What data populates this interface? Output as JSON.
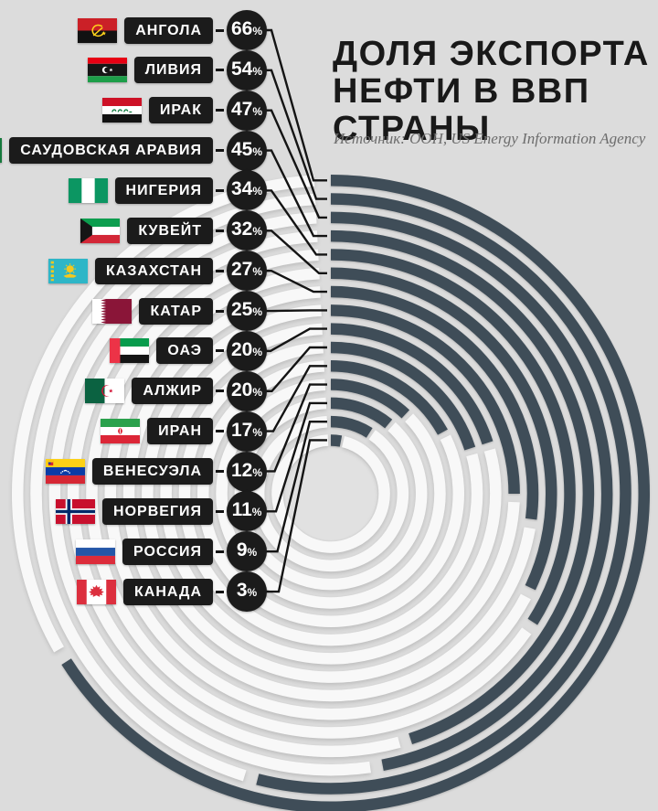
{
  "header": {
    "title_lines": [
      "ДОЛЯ ЭКСПОРТА",
      "НЕФТИ В ВВП",
      "СТРАНЫ"
    ],
    "source": "Источник: ООН, US Energy Information Agency"
  },
  "percent_symbol": "%",
  "colors": {
    "background": "#dcdcdc",
    "arc_filled": "#3f4d58",
    "arc_remainder": "#f8f8f8",
    "connector_line": "#141414",
    "label_box": "#1b1b1b",
    "badge": "#1b1b1b",
    "label_text": "#ffffff",
    "title_text": "#191919",
    "source_text": "#6d6d6d"
  },
  "countries": [
    {
      "name": "АНГОЛА",
      "value": 66,
      "flag": "angola-flag"
    },
    {
      "name": "ЛИВИЯ",
      "value": 54,
      "flag": "libya-flag"
    },
    {
      "name": "ИРАК",
      "value": 47,
      "flag": "iraq-flag"
    },
    {
      "name": "САУДОВСКАЯ АРАВИЯ",
      "value": 45,
      "flag": "saudi-arabia-flag"
    },
    {
      "name": "НИГЕРИЯ",
      "value": 34,
      "flag": "nigeria-flag"
    },
    {
      "name": "КУВЕЙТ",
      "value": 32,
      "flag": "kuwait-flag"
    },
    {
      "name": "КАЗАХСТАН",
      "value": 27,
      "flag": "kazakhstan-flag"
    },
    {
      "name": "КАТАР",
      "value": 25,
      "flag": "qatar-flag"
    },
    {
      "name": "ОАЭ",
      "value": 20,
      "flag": "uae-flag"
    },
    {
      "name": "АЛЖИР",
      "value": 20,
      "flag": "algeria-flag"
    },
    {
      "name": "ИРАН",
      "value": 17,
      "flag": "iran-flag"
    },
    {
      "name": "ВЕНЕСУЭЛА",
      "value": 12,
      "flag": "venezuela-flag"
    },
    {
      "name": "НОРВЕГИЯ",
      "value": 11,
      "flag": "norway-flag"
    },
    {
      "name": "РОССИЯ",
      "value": 9,
      "flag": "russia-flag"
    },
    {
      "name": "КАНАДА",
      "value": 3,
      "flag": "canada-flag"
    }
  ],
  "chart_data": {
    "type": "bar",
    "subtype": "radial-concentric-progress",
    "title": "ДОЛЯ ЭКСПОРТА НЕФТИ В ВВП СТРАНЫ",
    "source": "Источник: ООН, US Energy Information Agency",
    "unit": "%",
    "categories": [
      "АНГОЛА",
      "ЛИВИЯ",
      "ИРАК",
      "САУДОВСКАЯ АРАВИЯ",
      "НИГЕРИЯ",
      "КУВЕЙТ",
      "КАЗАХСТАН",
      "КАТАР",
      "ОАЭ",
      "АЛЖИР",
      "ИРАН",
      "ВЕНЕСУЭЛА",
      "НОРВЕГИЯ",
      "РОССИЯ",
      "КАНАДА"
    ],
    "values": [
      66,
      54,
      47,
      45,
      34,
      32,
      27,
      25,
      20,
      20,
      17,
      12,
      11,
      9,
      3
    ],
    "axis_range": [
      0,
      100
    ],
    "legend": "none",
    "layout_hints": {
      "ring_order": "outermost ring = highest value (АНГОЛА 66%), innermost = lowest (КАНАДА 3%)",
      "arc_start": "12 o'clock, sweep clockwise, sweep angle = value% of full circle",
      "filled_color": "#3f4d58",
      "remainder_color": "#f8f8f8",
      "labels": "left column with flag, country name, value badge, connector line to ring start"
    }
  }
}
